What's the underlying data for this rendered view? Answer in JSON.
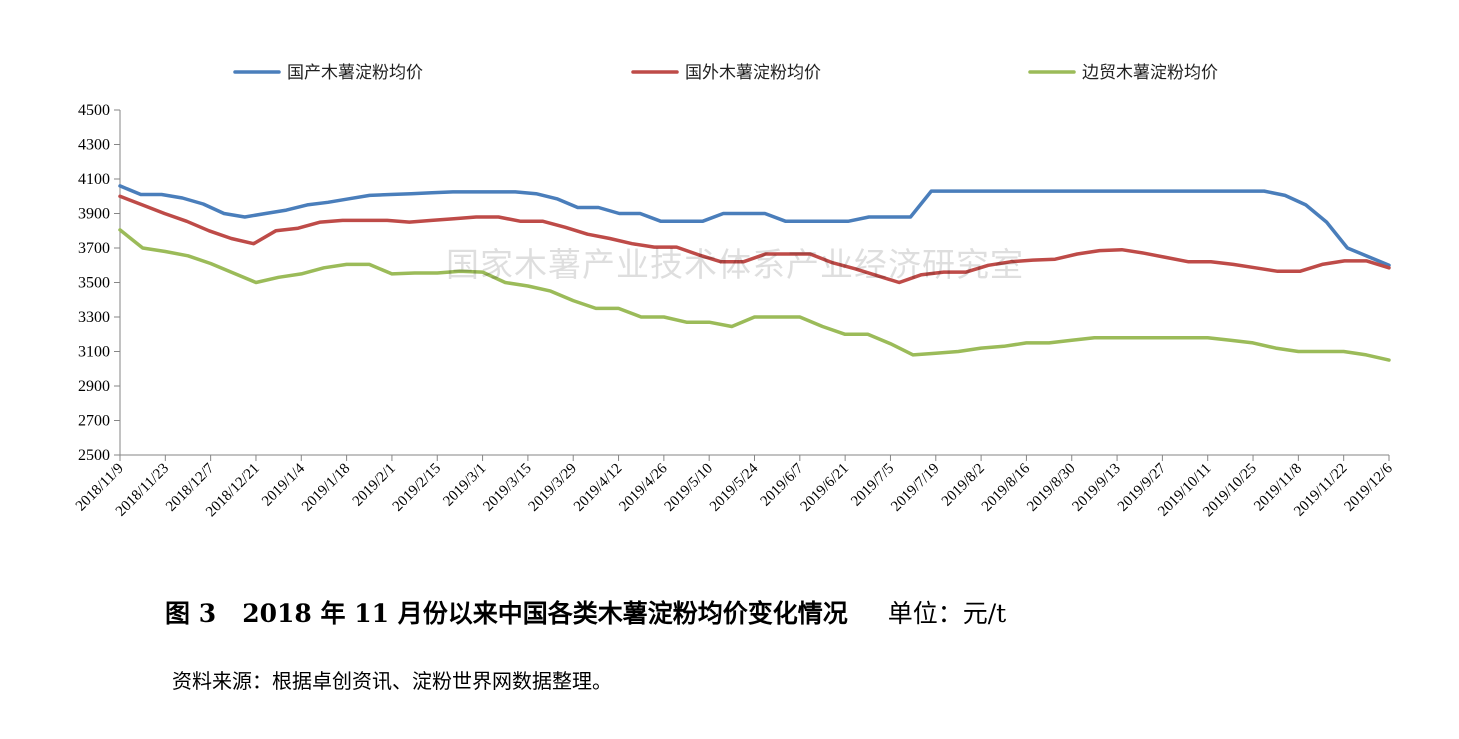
{
  "chart_data": {
    "type": "line",
    "title": "",
    "xlabel": "",
    "ylabel": "",
    "ylim": [
      2500,
      4500
    ],
    "ytick_step": 200,
    "grid": false,
    "legend_position": "top",
    "x_tick_labels": [
      "2018/11/9",
      "2018/11/23",
      "2018/12/7",
      "2018/12/21",
      "2019/1/4",
      "2019/1/18",
      "2019/2/1",
      "2019/2/15",
      "2019/3/1",
      "2019/3/15",
      "2019/3/29",
      "2019/4/12",
      "2019/4/26",
      "2019/5/10",
      "2019/5/24",
      "2019/6/7",
      "2019/6/21",
      "2019/7/5",
      "2019/7/19",
      "2019/8/2",
      "2019/8/16",
      "2019/8/30",
      "2019/9/13",
      "2019/9/27",
      "2019/10/11",
      "2019/10/25",
      "2019/11/8",
      "2019/11/22",
      "2019/12/6"
    ],
    "series": [
      {
        "name": "国产木薯淀粉均价",
        "color": "#4a7ebb",
        "values": [
          4060,
          4010,
          4010,
          3990,
          3955,
          3900,
          3880,
          3900,
          3920,
          3950,
          3965,
          3985,
          4005,
          4010,
          4015,
          4020,
          4025,
          4025,
          4025,
          4025,
          4015,
          3985,
          3935,
          3935,
          3900,
          3900,
          3855,
          3855,
          3855,
          3900,
          3900,
          3900,
          3855,
          3855,
          3855,
          3855,
          3880,
          3880,
          3880,
          4030,
          4030,
          4030,
          4030,
          4030,
          4030,
          4030,
          4030,
          4030,
          4030,
          4030,
          4030,
          4030,
          4030,
          4030,
          4030,
          4030,
          4005,
          3950,
          3850,
          3700,
          3650,
          3600
        ]
      },
      {
        "name": "国外木薯淀粉均价",
        "color": "#be4b48",
        "values": [
          4000,
          3950,
          3900,
          3855,
          3800,
          3755,
          3725,
          3800,
          3815,
          3850,
          3860,
          3860,
          3860,
          3850,
          3860,
          3870,
          3880,
          3880,
          3855,
          3855,
          3820,
          3780,
          3755,
          3725,
          3705,
          3705,
          3660,
          3620,
          3620,
          3665,
          3665,
          3665,
          3615,
          3580,
          3540,
          3500,
          3545,
          3560,
          3560,
          3600,
          3620,
          3630,
          3635,
          3665,
          3685,
          3690,
          3670,
          3645,
          3620,
          3620,
          3605,
          3585,
          3565,
          3565,
          3605,
          3625,
          3625,
          3585
        ]
      },
      {
        "name": "边贸木薯淀粉均价",
        "color": "#9bbb59",
        "values": [
          3805,
          3700,
          3680,
          3655,
          3610,
          3555,
          3500,
          3530,
          3550,
          3585,
          3605,
          3605,
          3550,
          3555,
          3555,
          3565,
          3560,
          3500,
          3480,
          3450,
          3395,
          3350,
          3350,
          3300,
          3300,
          3270,
          3270,
          3245,
          3300,
          3300,
          3300,
          3245,
          3200,
          3200,
          3145,
          3080,
          3090,
          3100,
          3120,
          3130,
          3150,
          3150,
          3165,
          3180,
          3180,
          3180,
          3180,
          3180,
          3180,
          3165,
          3150,
          3120,
          3100,
          3100,
          3100,
          3080,
          3050
        ]
      }
    ]
  },
  "watermark": "国家木薯产业技术体系产业经济研究室",
  "caption": {
    "text": "图 3   2018 年 11 月份以来中国各类木薯淀粉均价变化情况",
    "unit": "单位：元/t"
  },
  "source": "资料来源：根据卓创资讯、淀粉世界网数据整理。"
}
